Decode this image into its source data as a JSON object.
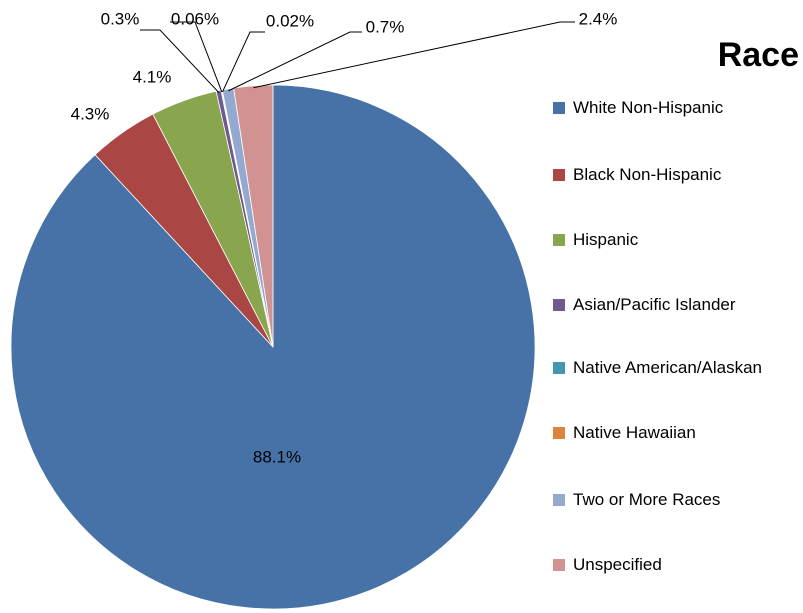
{
  "chart_data": {
    "type": "pie",
    "title": "Race",
    "categories": [
      "White Non-Hispanic",
      "Black Non-Hispanic",
      "Hispanic",
      "Asian/Pacific Islander",
      "Native American/Alaskan",
      "Native Hawaiian",
      "Two or More Races",
      "Unspecified"
    ],
    "values": [
      88.1,
      4.3,
      4.1,
      0.3,
      0.06,
      0.02,
      0.7,
      2.4
    ],
    "value_labels": [
      "88.1%",
      "4.3%",
      "4.1%",
      "0.3%",
      "0.06%",
      "0.02%",
      "0.7%",
      "2.4%"
    ],
    "colors": [
      "#4672a8",
      "#aa4643",
      "#89a54e",
      "#71588f",
      "#4198af",
      "#db843d",
      "#93a9cf",
      "#d19392"
    ],
    "legend": "right"
  }
}
